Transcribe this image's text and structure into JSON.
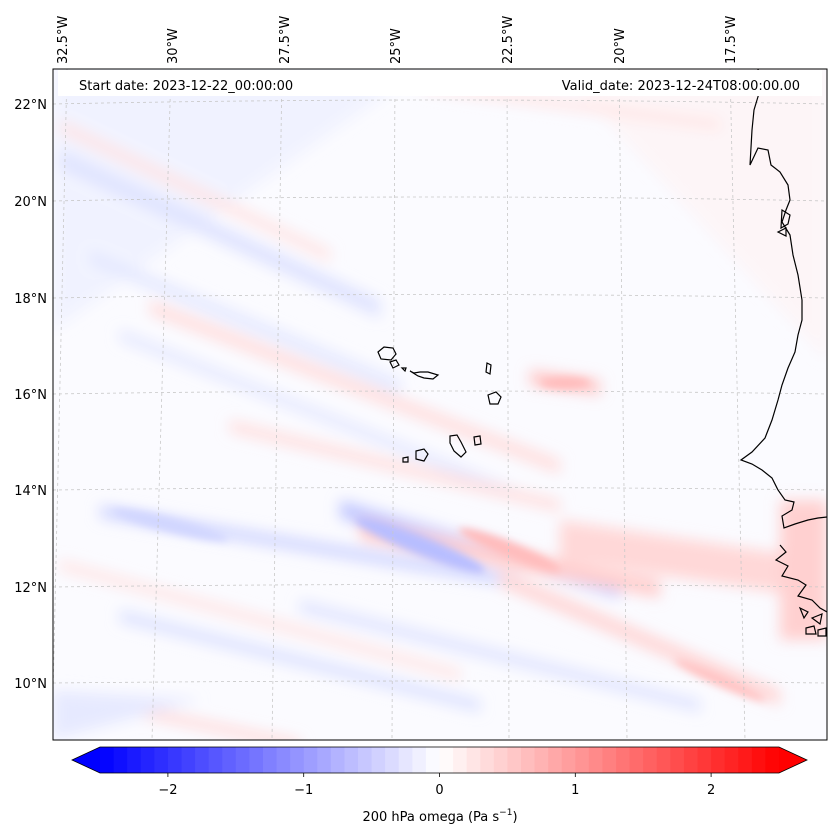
{
  "map": {
    "start_date_text": "Start date: 2023-12-22_00:00:00",
    "valid_date_text": "Valid_date: 2023-12-24T08:00:00.00",
    "lon_ticks": [
      "32.5°W",
      "30°W",
      "27.5°W",
      "25°W",
      "22.5°W",
      "20°W",
      "17.5°W"
    ],
    "lat_ticks": [
      "22°N",
      "20°N",
      "18°N",
      "16°N",
      "14°N",
      "12°N",
      "10°N"
    ],
    "coastline_color": "#000000",
    "gridline_color": "#c8c8c8"
  },
  "colorbar": {
    "ticks": [
      "−2",
      "−1",
      "0",
      "1",
      "2"
    ],
    "tick_values": [
      -2,
      -1,
      0,
      1,
      2
    ],
    "range": [
      -2.5,
      2.5
    ],
    "label_main": "200 hPa omega (Pa s",
    "label_sup": "−1",
    "label_end": ")",
    "colormap": "bwr",
    "extend": "both",
    "color_min": "#0000ff",
    "color_mid": "#ffffff",
    "color_max": "#ff0000"
  }
}
